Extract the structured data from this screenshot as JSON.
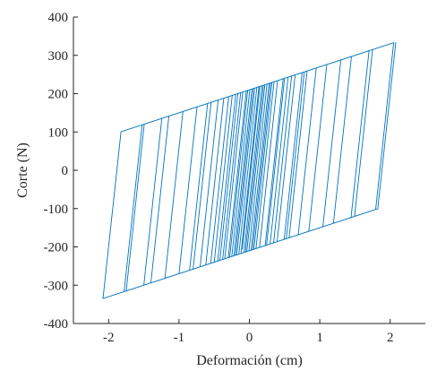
{
  "chart_data": {
    "type": "line",
    "title": "",
    "xlabel": "Deformación (cm)",
    "ylabel": "Corte (N)",
    "xlim": [
      -2.5,
      2.5
    ],
    "ylim": [
      -400,
      400
    ],
    "xticks": [
      -2,
      -1,
      0,
      1,
      2
    ],
    "xtick_labels": [
      "-2",
      "-1",
      "0",
      "1",
      "2"
    ],
    "yticks": [
      -400,
      -300,
      -200,
      -100,
      0,
      100,
      200,
      300,
      400
    ],
    "ytick_labels": [
      "-400",
      "-300",
      "-200",
      "-100",
      "0",
      "100",
      "200",
      "300",
      "400"
    ],
    "grid": false,
    "legend": "none",
    "box": "left-bottom axes only",
    "series": [
      {
        "line_color": "#0072BD",
        "model": {
          "post_yield_stiffness_N_per_cm": 60,
          "upper_branch_intercept_N": 210,
          "lower_branch_intercept_N": -210,
          "elastic_stiffness_N_per_cm": 1700
        },
        "reversal_deformations_cm": [
          2.08,
          -2.08,
          2.05,
          -1.78,
          1.75,
          -1.75,
          1.7,
          -1.5,
          1.45,
          -1.4,
          1.3,
          -1.2,
          1.1,
          -1.0,
          0.95,
          -0.85,
          0.82,
          -0.8,
          0.78,
          -0.7,
          0.75,
          -0.62,
          0.65,
          -0.55,
          0.6,
          -0.5,
          0.55,
          -0.45,
          0.5,
          -0.42,
          0.48,
          -0.38,
          0.4,
          -0.35,
          0.35,
          -0.3,
          0.32,
          -0.28,
          0.3,
          -0.25,
          0.28,
          -0.22,
          0.25,
          -0.2,
          0.22,
          -0.18,
          0.2,
          -0.15,
          0.18,
          -0.12,
          0.15,
          -0.1,
          0.12,
          -0.08,
          0.1,
          -0.06,
          0.08,
          -0.05,
          0.06
        ]
      }
    ]
  }
}
